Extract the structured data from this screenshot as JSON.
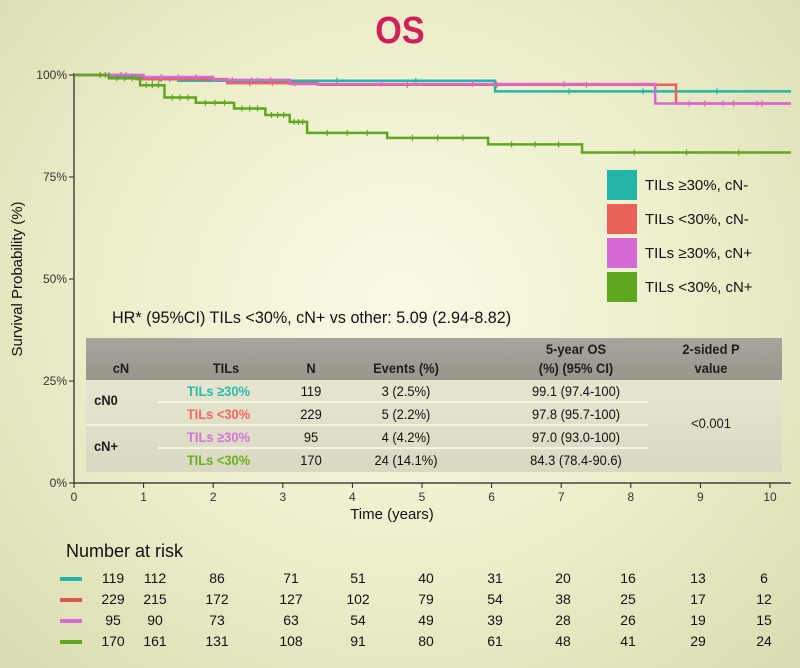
{
  "chart_data": {
    "type": "line",
    "title": "OS",
    "xlabel": "Time (years)",
    "ylabel": "Survival Probability (%)",
    "xlim": [
      0,
      10.3
    ],
    "ylim": [
      0,
      100
    ],
    "xticks": [
      "0",
      "1",
      "2",
      "3",
      "4",
      "5",
      "6",
      "7",
      "8",
      "9",
      "10"
    ],
    "yticks": [
      "0%",
      "25%",
      "50%",
      "75%",
      "100%"
    ],
    "legend_position": "right",
    "series": [
      {
        "name": "TILs ≥30%, cN-",
        "color": "#22b5a8",
        "steps": [
          [
            0,
            100
          ],
          [
            0.5,
            99.5
          ],
          [
            1.0,
            99
          ],
          [
            1.5,
            98.6
          ],
          [
            6.05,
            96
          ],
          [
            10.3,
            96
          ]
        ]
      },
      {
        "name": "TILs <30%, cN-",
        "color": "#e8625a",
        "steps": [
          [
            0,
            100
          ],
          [
            0.9,
            99
          ],
          [
            2.2,
            98
          ],
          [
            3.5,
            97.6
          ],
          [
            8.65,
            93
          ],
          [
            10.3,
            93
          ]
        ]
      },
      {
        "name": "TILs ≥30%, cN+",
        "color": "#d56ad6",
        "steps": [
          [
            0,
            100
          ],
          [
            1.0,
            99.5
          ],
          [
            2.0,
            98.8
          ],
          [
            3.1,
            97.8
          ],
          [
            8.35,
            93
          ],
          [
            10.3,
            93
          ]
        ]
      },
      {
        "name": "TILs <30%, cN+",
        "color": "#5ea71e",
        "steps": [
          [
            0,
            100
          ],
          [
            0.5,
            99.2
          ],
          [
            0.95,
            97.5
          ],
          [
            1.3,
            94.5
          ],
          [
            1.75,
            93.2
          ],
          [
            2.3,
            91.8
          ],
          [
            2.75,
            90.2
          ],
          [
            3.1,
            88.5
          ],
          [
            3.35,
            85.8
          ],
          [
            4.5,
            84.6
          ],
          [
            5.95,
            83
          ],
          [
            7.3,
            81
          ],
          [
            10.3,
            81
          ]
        ]
      }
    ]
  },
  "hr_text": "HR* (95%CI) TILs <30%, cN+ vs other: 5.09 (2.94-8.82)",
  "table": {
    "headers": {
      "cn": "cN",
      "tils": "TILs",
      "n": "N",
      "events": "Events (%)",
      "os_line1": "5-year OS",
      "os_line2": "(%) (95% CI)",
      "p_line1": "2-sided P",
      "p_line2": "value"
    },
    "groups": [
      "cN0",
      "cN+"
    ],
    "rows": [
      {
        "tils": "TILs ≥30%",
        "color": "#2bb9ac",
        "n": "119",
        "events": "3 (2.5%)",
        "os": "99.1 (97.4-100)"
      },
      {
        "tils": "TILs <30%",
        "color": "#ee6a5f",
        "n": "229",
        "events": "5 (2.2%)",
        "os": "97.8 (95.7-100)"
      },
      {
        "tils": "TILs ≥30%",
        "color": "#d573d8",
        "n": "95",
        "events": "4 (4.2%)",
        "os": "97.0 (93.0-100)"
      },
      {
        "tils": "TILs <30%",
        "color": "#6cae22",
        "n": "170",
        "events": "24 (14.1%)",
        "os": "84.3 (78.4-90.6)"
      }
    ],
    "p_value": "<0.001"
  },
  "risk": {
    "title": "Number at risk",
    "rows": [
      {
        "color": "#22b5a8",
        "values": [
          "119",
          "112",
          "86",
          "71",
          "51",
          "40",
          "31",
          "20",
          "16",
          "13",
          "6"
        ]
      },
      {
        "color": "#e0554e",
        "values": [
          "229",
          "215",
          "172",
          "127",
          "102",
          "79",
          "54",
          "38",
          "25",
          "17",
          "12"
        ]
      },
      {
        "color": "#d56ad6",
        "values": [
          "95",
          "90",
          "73",
          "63",
          "54",
          "49",
          "39",
          "28",
          "26",
          "19",
          "15"
        ]
      },
      {
        "color": "#5ea71e",
        "values": [
          "170",
          "161",
          "131",
          "108",
          "91",
          "80",
          "61",
          "48",
          "41",
          "29",
          "24"
        ]
      }
    ]
  }
}
